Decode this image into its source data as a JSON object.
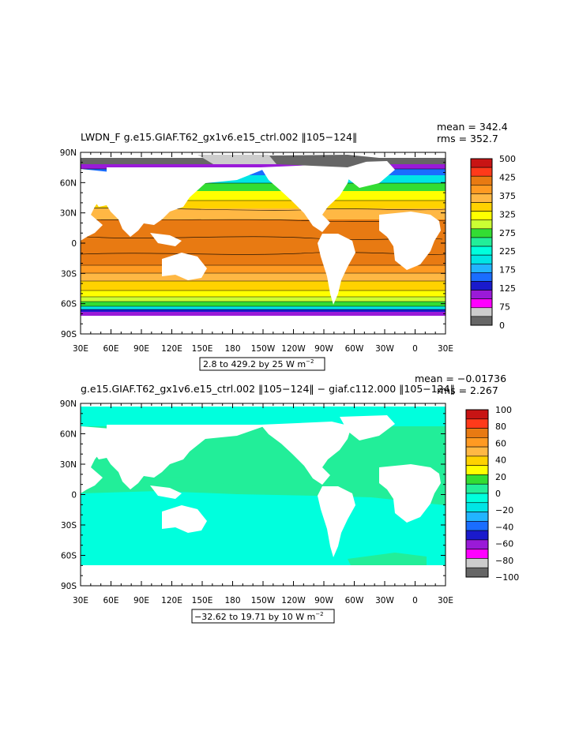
{
  "panels": [
    {
      "title": "LWDN_F g.e15.GIAF.T62_gx1v6.e15_ctrl.002 ‖105−124‖",
      "mean_text": "mean = 342.4",
      "rms_text": "rms = 352.7",
      "range_text": "2.8 to 429.2 by 25  W m",
      "units_sup": "−2",
      "colorbar_labels": [
        "500",
        "425",
        "375",
        "325",
        "275",
        "225",
        "175",
        "125",
        "75",
        "0"
      ],
      "colorbar_colors": [
        "#c81414",
        "#ff3a1a",
        "#e87a12",
        "#ff9a22",
        "#ffb844",
        "#ffd200",
        "#ffff00",
        "#ccff33",
        "#33dd33",
        "#22ee99",
        "#00ffdd",
        "#00e5e5",
        "#22b4ff",
        "#1a6dff",
        "#1a1acc",
        "#9a1ad8",
        "#ff00ff",
        "#cccccc",
        "#666666"
      ],
      "field": "absolute"
    },
    {
      "title": "g.e15.GIAF.T62_gx1v6.e15_ctrl.002 ‖105−124‖ − giaf.c112.000 ‖105−124‖",
      "mean_text": "mean = −0.01736",
      "rms_text": "rms = 2.267",
      "range_text": "−32.62 to 19.71 by 10  W m",
      "units_sup": "−2",
      "colorbar_labels": [
        "100",
        "80",
        "60",
        "40",
        "20",
        "0",
        "−20",
        "−40",
        "−60",
        "−80",
        "−100"
      ],
      "colorbar_colors": [
        "#c81414",
        "#ff3a1a",
        "#e87a12",
        "#ff9a22",
        "#ffb844",
        "#ffd200",
        "#ffff00",
        "#33dd33",
        "#22ee99",
        "#00ffdd",
        "#00e5e5",
        "#22b4ff",
        "#1a6dff",
        "#1a1acc",
        "#9a1ad8",
        "#ff00ff",
        "#cccccc",
        "#666666"
      ],
      "field": "difference"
    }
  ],
  "axes": {
    "lat_labels": [
      "90N",
      "60N",
      "30N",
      "0",
      "30S",
      "60S",
      "90S"
    ],
    "lon_labels": [
      "30E",
      "60E",
      "90E",
      "120E",
      "150E",
      "180",
      "150W",
      "120W",
      "90W",
      "60W",
      "30W",
      "0",
      "30E"
    ]
  }
}
